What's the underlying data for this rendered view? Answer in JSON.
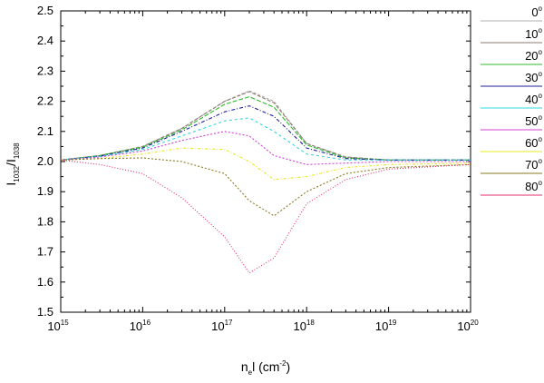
{
  "chart_data": {
    "type": "line",
    "title": "",
    "x_scale": "log",
    "xlim": [
      1000000000000000.0,
      1e+20
    ],
    "ylim": [
      1.5,
      2.5
    ],
    "y_ticks": [
      "1.5",
      "1.6",
      "1.7",
      "1.8",
      "1.9",
      "2.0",
      "2.1",
      "2.2",
      "2.3",
      "2.4",
      "2.5"
    ],
    "x_ticks": [
      {
        "base": "10",
        "exp": "15"
      },
      {
        "base": "10",
        "exp": "16"
      },
      {
        "base": "10",
        "exp": "17"
      },
      {
        "base": "10",
        "exp": "18"
      },
      {
        "base": "10",
        "exp": "19"
      },
      {
        "base": "10",
        "exp": "20"
      }
    ],
    "xlabel": {
      "p1": "n",
      "sub": "e",
      "p2": "l (cm",
      "sup": "-2",
      "p3": ")"
    },
    "ylabel": {
      "p1": "I",
      "sub1": "1032",
      "p2": "/I",
      "sub2": "1038"
    },
    "legend_position": "right",
    "grid": false,
    "x": [
      1000000000000000.0,
      3000000000000000.0,
      1e+16,
      3e+16,
      1e+17,
      2e+17,
      4e+17,
      1e+18,
      3e+18,
      1e+19,
      1e+20
    ],
    "series": [
      {
        "name": "0",
        "sup": "o",
        "color": "#b0b0b0",
        "values": [
          2.005,
          2.02,
          2.05,
          2.11,
          2.2,
          2.235,
          2.2,
          2.06,
          2.015,
          2.005,
          2.005
        ]
      },
      {
        "name": "10",
        "sup": "o",
        "color": "#8c7a70",
        "values": [
          2.005,
          2.02,
          2.05,
          2.11,
          2.2,
          2.232,
          2.195,
          2.06,
          2.015,
          2.005,
          2.005
        ]
      },
      {
        "name": "20",
        "sup": "o",
        "color": "#2fb82f",
        "values": [
          2.005,
          2.02,
          2.048,
          2.105,
          2.19,
          2.215,
          2.18,
          2.055,
          2.012,
          2.005,
          2.005
        ]
      },
      {
        "name": "30",
        "sup": "o",
        "color": "#1f1f9a",
        "values": [
          2.005,
          2.018,
          2.045,
          2.1,
          2.165,
          2.185,
          2.15,
          2.045,
          2.01,
          2.005,
          2.005
        ]
      },
      {
        "name": "40",
        "sup": "o",
        "color": "#30d8e0",
        "values": [
          2.005,
          2.017,
          2.04,
          2.085,
          2.135,
          2.145,
          2.1,
          2.025,
          2.005,
          2.005,
          2.005
        ]
      },
      {
        "name": "50",
        "sup": "o",
        "color": "#d040d0",
        "values": [
          2.005,
          2.015,
          2.035,
          2.07,
          2.1,
          2.085,
          2.02,
          1.99,
          1.995,
          2.0,
          2.0
        ]
      },
      {
        "name": "60",
        "sup": "o",
        "color": "#e8e820",
        "values": [
          2.005,
          2.01,
          2.025,
          2.045,
          2.04,
          2.0,
          1.94,
          1.95,
          1.98,
          1.99,
          1.995
        ]
      },
      {
        "name": "70",
        "sup": "o",
        "color": "#8a7a20",
        "values": [
          2.005,
          2.01,
          2.012,
          2.0,
          1.96,
          1.87,
          1.82,
          1.9,
          1.96,
          1.98,
          1.99
        ]
      },
      {
        "name": "80",
        "sup": "o",
        "color": "#e0306a",
        "values": [
          2.005,
          1.99,
          1.96,
          1.88,
          1.75,
          1.63,
          1.68,
          1.86,
          1.94,
          1.975,
          1.99
        ]
      }
    ]
  }
}
